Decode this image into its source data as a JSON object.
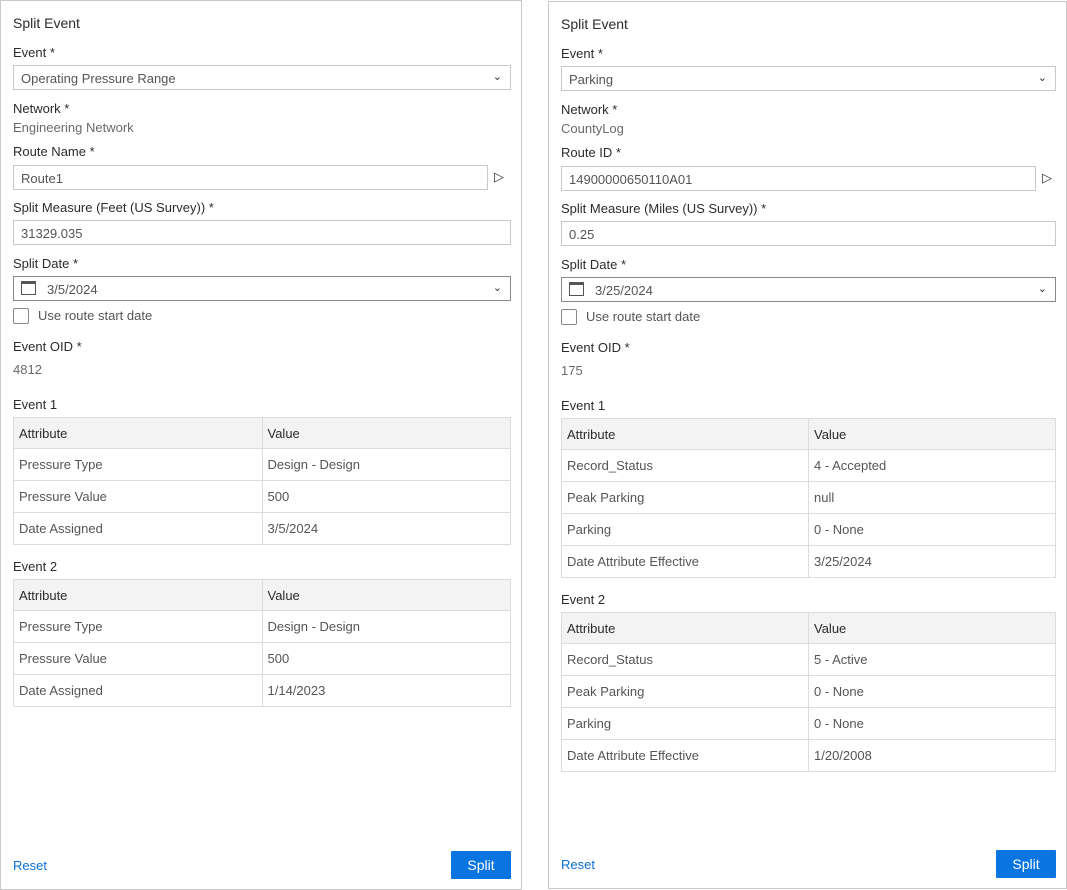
{
  "panels": [
    {
      "title": "Split Event",
      "event_label": "Event *",
      "event_value": "Operating Pressure Range",
      "network_label": "Network *",
      "network_value": "Engineering Network",
      "route_label": "Route Name *",
      "route_value": "Route1",
      "measure_label": "Split Measure (Feet (US Survey)) *",
      "measure_value": "31329.035",
      "date_label": "Split Date *",
      "date_value": "3/5/2024",
      "checkbox_label": "Use route start date",
      "oid_label": "Event OID *",
      "oid_value": "4812",
      "event1": {
        "title": "Event 1",
        "headers": [
          "Attribute",
          "Value"
        ],
        "rows": [
          [
            "Pressure Type",
            "Design - Design"
          ],
          [
            "Pressure Value",
            "500"
          ],
          [
            "Date Assigned",
            "3/5/2024"
          ]
        ]
      },
      "event2": {
        "title": "Event 2",
        "headers": [
          "Attribute",
          "Value"
        ],
        "rows": [
          [
            "Pressure Type",
            "Design - Design"
          ],
          [
            "Pressure Value",
            "500"
          ],
          [
            "Date Assigned",
            "1/14/2023"
          ]
        ]
      },
      "reset": "Reset",
      "split": "Split"
    },
    {
      "title": "Split Event",
      "event_label": "Event *",
      "event_value": "Parking",
      "network_label": "Network *",
      "network_value": "CountyLog",
      "route_label": "Route ID *",
      "route_value": "14900000650110A01",
      "measure_label": "Split Measure (Miles (US Survey)) *",
      "measure_value": "0.25",
      "date_label": "Split Date *",
      "date_value": "3/25/2024",
      "checkbox_label": "Use route start date",
      "oid_label": "Event OID *",
      "oid_value": "175",
      "event1": {
        "title": "Event 1",
        "headers": [
          "Attribute",
          "Value"
        ],
        "rows": [
          [
            "Record_Status",
            "4 - Accepted"
          ],
          [
            "Peak Parking",
            "null"
          ],
          [
            "Parking",
            "0 - None"
          ],
          [
            "Date Attribute Effective",
            "3/25/2024"
          ]
        ]
      },
      "event2": {
        "title": "Event 2",
        "headers": [
          "Attribute",
          "Value"
        ],
        "rows": [
          [
            "Record_Status",
            "5 - Active"
          ],
          [
            "Peak Parking",
            "0 - None"
          ],
          [
            "Parking",
            "0 - None"
          ],
          [
            "Date Attribute Effective",
            "1/20/2008"
          ]
        ]
      },
      "reset": "Reset",
      "split": "Split"
    }
  ]
}
